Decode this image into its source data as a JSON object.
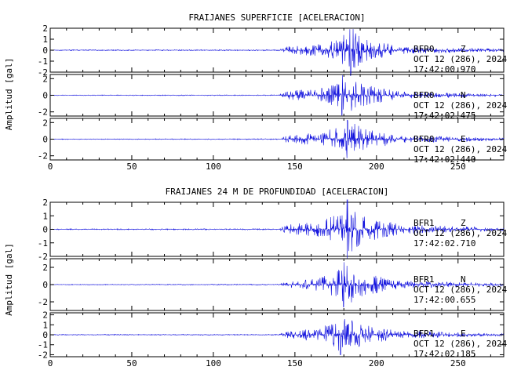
{
  "chart_data": [
    {
      "type": "line",
      "title": "FRAIJANES SUPERFICIE [ACELERACION]",
      "ylabel": "Amplitud [gal]",
      "xlabel": "",
      "xlim": [
        0,
        278
      ],
      "xticks": [
        "0",
        "50",
        "100",
        "150",
        "200",
        "250"
      ],
      "xtick_values": [
        0,
        50,
        100,
        150,
        200,
        250
      ],
      "grid": false,
      "series": [
        {
          "station": "BFR0",
          "component": "Z",
          "date": "OCT 12 (286), 2024",
          "time": "17:42:00.970",
          "ylim": [
            -2,
            2
          ],
          "yticks": [
            "2",
            "1",
            "0",
            "-1",
            "-2"
          ],
          "ytick_values": [
            2,
            1,
            0,
            -1,
            -2
          ],
          "onset_s": 140,
          "peak_s": 184,
          "peak_amp": 2.3,
          "envelope": [
            [
              0,
              0.04
            ],
            [
              140,
              0.05
            ],
            [
              145,
              0.35
            ],
            [
              165,
              0.55
            ],
            [
              178,
              1.1
            ],
            [
              184,
              2.2
            ],
            [
              195,
              1.0
            ],
            [
              215,
              0.35
            ],
            [
              278,
              0.12
            ]
          ]
        },
        {
          "station": "BFR0",
          "component": "N",
          "date": "OCT 12 (286), 2024",
          "time": "17:42:02.475",
          "ylim": [
            -2.5,
            2.5
          ],
          "yticks": [
            "2",
            "0",
            "-2"
          ],
          "ytick_values": [
            2,
            0,
            -2
          ],
          "onset_s": 140,
          "peak_s": 179,
          "peak_amp": 2.4,
          "envelope": [
            [
              0,
              0.04
            ],
            [
              140,
              0.06
            ],
            [
              145,
              0.55
            ],
            [
              165,
              0.8
            ],
            [
              176,
              1.5
            ],
            [
              179,
              2.3
            ],
            [
              192,
              1.3
            ],
            [
              215,
              0.4
            ],
            [
              278,
              0.12
            ]
          ]
        },
        {
          "station": "BFR0",
          "component": "E",
          "date": "OCT 12 (286), 2024",
          "time": "17:42:02.440",
          "ylim": [
            -2.5,
            2.5
          ],
          "yticks": [
            "2",
            "0",
            "-2"
          ],
          "ytick_values": [
            2,
            0,
            -2
          ],
          "onset_s": 140,
          "peak_s": 182,
          "peak_amp": 2.3,
          "envelope": [
            [
              0,
              0.04
            ],
            [
              140,
              0.06
            ],
            [
              145,
              0.45
            ],
            [
              165,
              0.8
            ],
            [
              178,
              1.8
            ],
            [
              182,
              2.2
            ],
            [
              195,
              1.2
            ],
            [
              215,
              0.5
            ],
            [
              278,
              0.15
            ]
          ]
        }
      ]
    },
    {
      "type": "line",
      "title": "FRAIJANES 24 M DE PROFUNDIDAD [ACELERACION]",
      "ylabel": "Amplitud [gal]",
      "xlabel": "",
      "xlim": [
        0,
        278
      ],
      "xticks": [
        "0",
        "50",
        "100",
        "150",
        "200",
        "250"
      ],
      "xtick_values": [
        0,
        50,
        100,
        150,
        200,
        250
      ],
      "grid": false,
      "series": [
        {
          "station": "BFR1",
          "component": "Z",
          "date": "OCT 12 (286), 2024",
          "time": "17:42:02.710",
          "ylim": [
            -2,
            2
          ],
          "yticks": [
            "2",
            "1",
            "0",
            "-1",
            "-2"
          ],
          "ytick_values": [
            2,
            1,
            0,
            -1,
            -2
          ],
          "onset_s": 140,
          "peak_s": 182,
          "peak_amp": 2.2,
          "envelope": [
            [
              0,
              0.04
            ],
            [
              140,
              0.05
            ],
            [
              145,
              0.35
            ],
            [
              165,
              0.6
            ],
            [
              178,
              1.3
            ],
            [
              182,
              2.0
            ],
            [
              195,
              0.9
            ],
            [
              215,
              0.35
            ],
            [
              278,
              0.12
            ]
          ]
        },
        {
          "station": "BFR1",
          "component": "N",
          "date": "OCT 12 (286), 2024",
          "time": "17:42:00.655",
          "ylim": [
            -3,
            3
          ],
          "yticks": [
            "2",
            "0",
            "-2"
          ],
          "ytick_values": [
            2,
            0,
            -2
          ],
          "onset_s": 140,
          "peak_s": 180,
          "peak_amp": 2.6,
          "envelope": [
            [
              0,
              0.04
            ],
            [
              140,
              0.06
            ],
            [
              145,
              0.35
            ],
            [
              165,
              0.8
            ],
            [
              176,
              1.6
            ],
            [
              180,
              2.5
            ],
            [
              195,
              1.2
            ],
            [
              215,
              0.45
            ],
            [
              278,
              0.15
            ]
          ]
        },
        {
          "station": "BFR1",
          "component": "E",
          "date": "OCT 12 (286), 2024",
          "time": "17:42:02.185",
          "ylim": [
            -2.2,
            2.2
          ],
          "yticks": [
            "2",
            "1",
            "0",
            "-1",
            "-2"
          ],
          "ytick_values": [
            2,
            1,
            0,
            -1,
            -2
          ],
          "onset_s": 140,
          "peak_s": 178,
          "peak_amp": 2.0,
          "envelope": [
            [
              0,
              0.04
            ],
            [
              140,
              0.05
            ],
            [
              145,
              0.35
            ],
            [
              165,
              0.65
            ],
            [
              175,
              1.5
            ],
            [
              178,
              1.9
            ],
            [
              192,
              1.0
            ],
            [
              215,
              0.4
            ],
            [
              278,
              0.12
            ]
          ]
        }
      ]
    }
  ]
}
